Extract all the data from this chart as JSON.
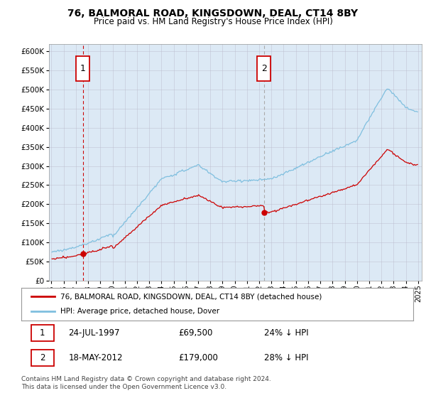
{
  "title": "76, BALMORAL ROAD, KINGSDOWN, DEAL, CT14 8BY",
  "subtitle": "Price paid vs. HM Land Registry's House Price Index (HPI)",
  "background_color": "#ffffff",
  "plot_bg_color": "#dce9f5",
  "sale1_date_str": "24-JUL-1997",
  "sale1_price": 69500,
  "sale1_label": "1",
  "sale1_x": 1997.56,
  "sale2_date_str": "18-MAY-2012",
  "sale2_price": 179000,
  "sale2_label": "2",
  "sale2_x": 2012.38,
  "legend_line1": "76, BALMORAL ROAD, KINGSDOWN, DEAL, CT14 8BY (detached house)",
  "legend_line2": "HPI: Average price, detached house, Dover",
  "footer": "Contains HM Land Registry data © Crown copyright and database right 2024.\nThis data is licensed under the Open Government Licence v3.0.",
  "hpi_color": "#7fbfdf",
  "price_color": "#cc0000",
  "sale1_vline_color": "#cc0000",
  "sale2_vline_color": "#aaaaaa",
  "ylim_min": 0,
  "ylim_max": 620000,
  "xlim_min": 1994.8,
  "xlim_max": 2025.3
}
